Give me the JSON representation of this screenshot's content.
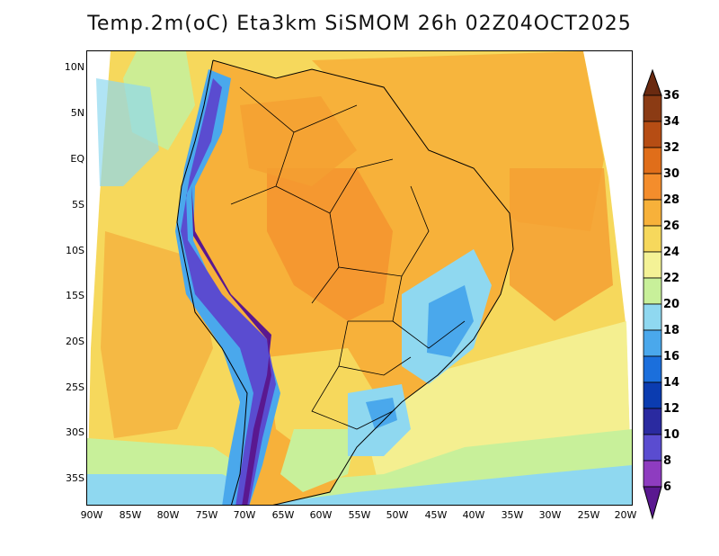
{
  "title": "Temp.2m(oC) Eta3km SiSMOM 26h 02Z04OCT2025",
  "y_ticks": [
    "10N",
    "5N",
    "EQ",
    "5S",
    "10S",
    "15S",
    "20S",
    "25S",
    "30S",
    "35S"
  ],
  "x_ticks": [
    "90W",
    "85W",
    "80W",
    "75W",
    "70W",
    "65W",
    "60W",
    "55W",
    "50W",
    "45W",
    "40W",
    "35W",
    "30W",
    "25W",
    "20W"
  ],
  "colorbar": {
    "labels": [
      "36",
      "34",
      "32",
      "30",
      "28",
      "26",
      "24",
      "22",
      "20",
      "18",
      "16",
      "14",
      "12",
      "10",
      "8",
      "6"
    ],
    "colors": [
      "#6a2a10",
      "#8b3b14",
      "#b64d14",
      "#e06e1a",
      "#f48d2c",
      "#f7b13a",
      "#f6d85c",
      "#f4f296",
      "#c8f09a",
      "#8fd8f0",
      "#4aa8ec",
      "#1b6fdc",
      "#0b3cb0",
      "#2a2aa0",
      "#5a4cd0",
      "#8e3cc0",
      "#5a1890"
    ]
  },
  "map": {
    "region": "South America",
    "field": "2 m temperature"
  }
}
